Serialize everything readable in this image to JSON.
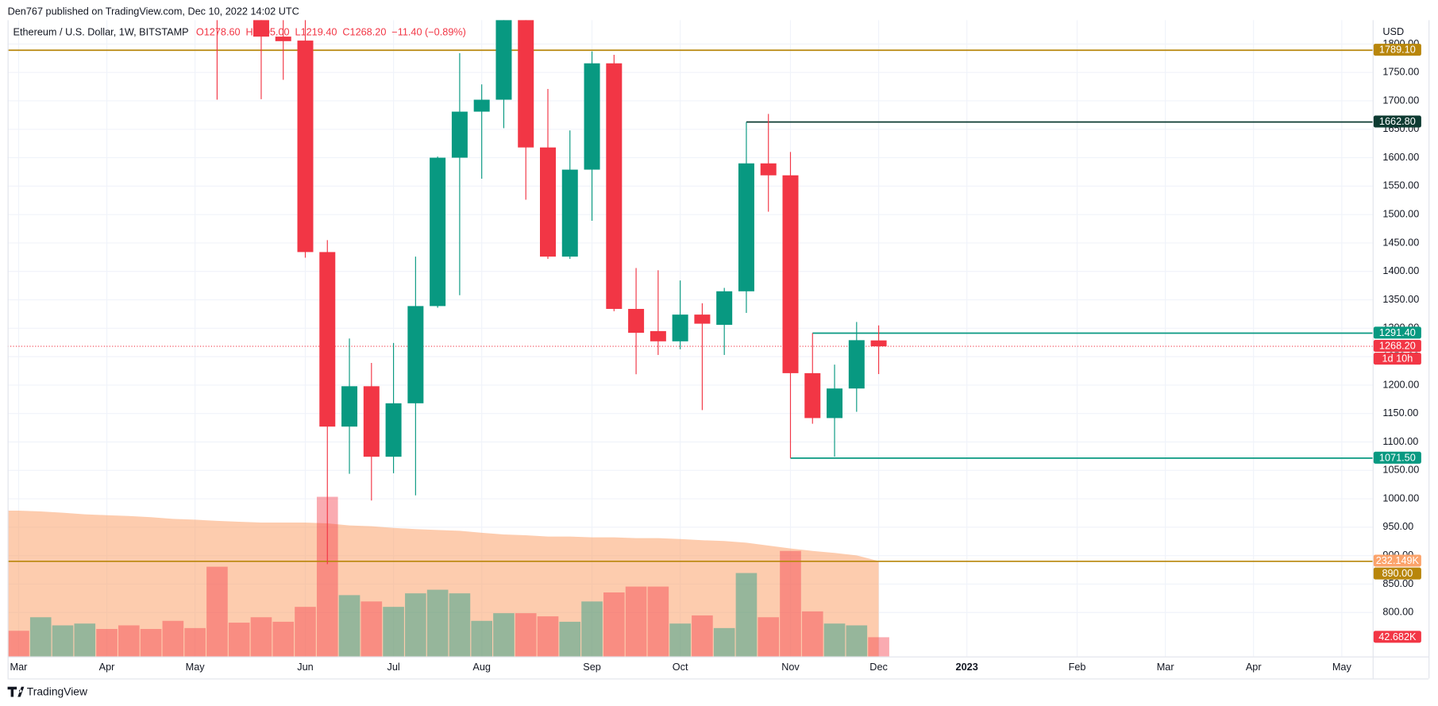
{
  "header": {
    "publisher": "Den767 published on TradingView.com, Dec 10, 2022 14:02 UTC",
    "brand": "TradingView"
  },
  "chart_data": {
    "type": "candlestick",
    "title": "Ethereum / U.S. Dollar, 1W, BITSTAMP",
    "ohlc_text": [
      "O1278.60",
      "H1305.00",
      "L1219.40",
      "C1268.20"
    ],
    "change_text": "−11.40 (−0.89%)",
    "currency": "USD",
    "xlim": [
      -0.5,
      61.4
    ],
    "xticks": [
      {
        "value": 0,
        "label": "Mar"
      },
      {
        "value": 4,
        "label": "Apr"
      },
      {
        "value": 8,
        "label": "May"
      },
      {
        "value": 13,
        "label": "Jun"
      },
      {
        "value": 17,
        "label": "Jul"
      },
      {
        "value": 21,
        "label": "Aug"
      },
      {
        "value": 26,
        "label": "Sep"
      },
      {
        "value": 30,
        "label": "Oct"
      },
      {
        "value": 35,
        "label": "Nov"
      },
      {
        "value": 39,
        "label": "Dec"
      },
      {
        "value": 43,
        "label": "2023"
      },
      {
        "value": 48,
        "label": "Feb"
      },
      {
        "value": 52,
        "label": "Mar"
      },
      {
        "value": 56,
        "label": "Apr"
      },
      {
        "value": 60,
        "label": "May"
      }
    ],
    "ylim": [
      722.6,
      1841.9
    ],
    "yticks": [
      {
        "value": 800,
        "label": "800.00"
      },
      {
        "value": 850,
        "label": "850.00"
      },
      {
        "value": 900,
        "label": "900.00"
      },
      {
        "value": 950,
        "label": "950.00"
      },
      {
        "value": 1000,
        "label": "1000.00"
      },
      {
        "value": 1050,
        "label": "1050.00"
      },
      {
        "value": 1100,
        "label": "1100.00"
      },
      {
        "value": 1150,
        "label": "1150.00"
      },
      {
        "value": 1200,
        "label": "1200.00"
      },
      {
        "value": 1250,
        "label": "1250.00"
      },
      {
        "value": 1300,
        "label": "1300.00"
      },
      {
        "value": 1350,
        "label": "1350.00"
      },
      {
        "value": 1400,
        "label": "1400.00"
      },
      {
        "value": 1450,
        "label": "1450.00"
      },
      {
        "value": 1500,
        "label": "1500.00"
      },
      {
        "value": 1550,
        "label": "1550.00"
      },
      {
        "value": 1600,
        "label": "1600.00"
      },
      {
        "value": 1650,
        "label": "1650.00"
      },
      {
        "value": 1700,
        "label": "1700.00"
      },
      {
        "value": 1750,
        "label": "1750.00"
      },
      {
        "value": 1800,
        "label": "1800.00"
      }
    ],
    "grid": true,
    "up_color": "#089981",
    "down_color": "#f23645",
    "open": [
      null,
      null,
      null,
      null,
      null,
      null,
      null,
      null,
      null,
      2245,
      null,
      1975,
      1813,
      1806,
      1434,
      1127,
      1198,
      1074,
      1168,
      1339,
      1600,
      1681,
      1702,
      1985,
      1618,
      1426,
      1579,
      1766,
      1334,
      1295,
      1277,
      1324,
      1306,
      1365,
      1590,
      1569,
      1221,
      1142,
      1194,
      1278.6
    ],
    "high": [
      null,
      null,
      null,
      null,
      null,
      null,
      null,
      null,
      null,
      2455,
      null,
      2030,
      1970,
      1918,
      1455,
      1282,
      1239,
      1274,
      1426,
      1602,
      1784,
      1729,
      2010,
      2020,
      1721,
      1648,
      1787,
      1781,
      1406,
      1402,
      1384,
      1344,
      1371,
      1662.8,
      1677,
      1610,
      1291.4,
      1236,
      1311,
      1305
    ],
    "low": [
      null,
      null,
      null,
      null,
      null,
      null,
      null,
      null,
      null,
      1702,
      null,
      1703,
      1737,
      1424,
      885,
      1044,
      997,
      1045,
      1006,
      1336,
      1358,
      1563,
      1652,
      1526,
      1422,
      1422,
      1489,
      1330,
      1219,
      1253,
      1263,
      1156,
      1253,
      1327,
      1505,
      1071.5,
      1132,
      1074,
      1153,
      1219.4
    ],
    "close": [
      null,
      null,
      null,
      null,
      null,
      null,
      null,
      null,
      null,
      2010,
      null,
      1813,
      1805,
      1434,
      1127,
      1198,
      1074,
      1168,
      1339,
      1600,
      1681,
      1702,
      1985,
      1618,
      1426,
      1579,
      1766,
      1334,
      1292,
      1277,
      1324,
      1308,
      1365,
      1590,
      1569,
      1221,
      1142,
      1194,
      1279,
      1268.2
    ],
    "volume": {
      "values": [
        57,
        87,
        69,
        73,
        61,
        69,
        61,
        79,
        63,
        199,
        75,
        87,
        77,
        110,
        354,
        136,
        122,
        110,
        140,
        148,
        140,
        79,
        96,
        96,
        89,
        77,
        122,
        142,
        155,
        155,
        73,
        91,
        63,
        185,
        87,
        234,
        100,
        73,
        69,
        42.682
      ],
      "colors": [
        "#f23645",
        "#089981",
        "#089981",
        "#089981",
        "#f23645",
        "#f23645",
        "#f23645",
        "#f23645",
        "#f23645",
        "#f23645",
        "#f23645",
        "#f23645",
        "#f23645",
        "#f23645",
        "#f23645",
        "#089981",
        "#f23645",
        "#089981",
        "#089981",
        "#089981",
        "#089981",
        "#089981",
        "#089981",
        "#f23645",
        "#f23645",
        "#089981",
        "#089981",
        "#f23645",
        "#f23645",
        "#f23645",
        "#089981",
        "#f23645",
        "#089981",
        "#089981",
        "#f23645",
        "#f23645",
        "#f23645",
        "#089981",
        "#089981",
        "#f23645"
      ],
      "value_labels": [
        null,
        null,
        null,
        null,
        null,
        null,
        null,
        null,
        null,
        null,
        null,
        null,
        null,
        null,
        null,
        null,
        null,
        null,
        null,
        null,
        null,
        null,
        null,
        null,
        null,
        null,
        null,
        null,
        null,
        null,
        null,
        null,
        null,
        null,
        null,
        null,
        null,
        null,
        null,
        "42.682K"
      ],
      "ylim": [
        0,
        1000
      ]
    },
    "volume_ma": {
      "values": [
        355,
        353,
        350,
        346,
        344,
        342,
        339,
        335,
        333,
        330,
        328,
        326,
        326,
        326,
        324,
        319,
        317,
        313,
        310,
        308,
        306,
        301,
        297,
        295,
        292,
        292,
        290,
        290,
        288,
        288,
        286,
        283,
        281,
        277,
        270,
        263,
        257,
        252,
        246,
        232.149
      ],
      "value_labels": [
        null,
        null,
        null,
        null,
        null,
        null,
        null,
        null,
        null,
        null,
        null,
        null,
        null,
        null,
        null,
        null,
        null,
        null,
        null,
        null,
        null,
        null,
        null,
        null,
        null,
        null,
        null,
        null,
        null,
        null,
        null,
        null,
        null,
        null,
        null,
        null,
        null,
        null,
        null,
        "232.149K"
      ],
      "color": "#fba36b",
      "ylim": [
        0,
        1098
      ]
    },
    "levels": [
      {
        "value": 1789.1,
        "label": "1789.10",
        "color": "#b8860b"
      },
      {
        "value": 1662.8,
        "label": "1662.80",
        "color": "#0d3b32",
        "from_index": 33
      },
      {
        "value": 1291.4,
        "label": "1291.40",
        "color": "#089981",
        "from_index": 36
      },
      {
        "value": 1071.5,
        "label": "1071.50",
        "color": "#089981",
        "from_index": 35
      },
      {
        "value": 890,
        "label": "890.00",
        "color": "#b8860b"
      }
    ],
    "last_price": {
      "value": 1268.2,
      "label": "1268.20",
      "countdown": "1d 10h",
      "color": "#f23645"
    }
  }
}
